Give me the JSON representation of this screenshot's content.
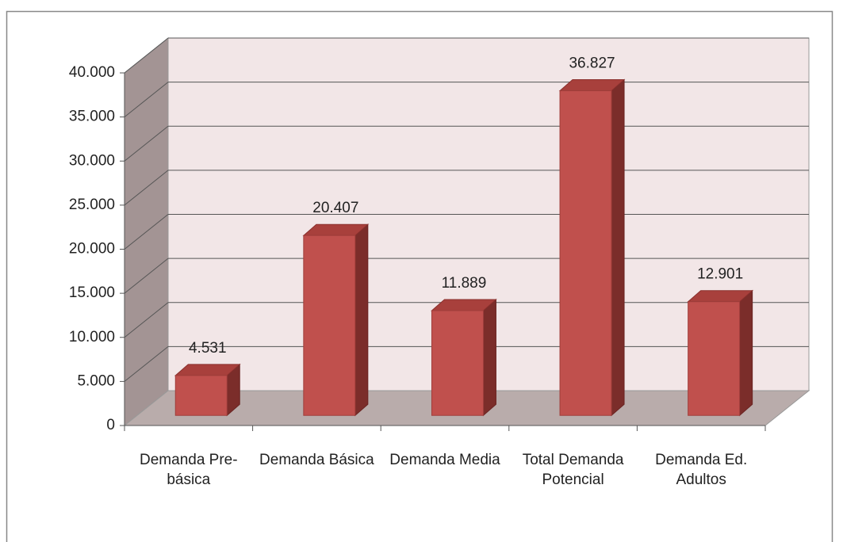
{
  "chart_data": {
    "type": "bar3d",
    "categories": [
      "Demanda Pre-básica",
      "Demanda Básica",
      "Demanda Media",
      "Total Demanda Potencial",
      "Demanda Ed. Adultos"
    ],
    "values": [
      4531,
      20407,
      11889,
      36827,
      12901
    ],
    "value_labels": [
      "4.531",
      "20.407",
      "11.889",
      "36.827",
      "12.901"
    ],
    "color": "#c0504d",
    "ylim": [
      0,
      40000
    ],
    "yticks": [
      0,
      {
        "value": 5000,
        "label": "5.000"
      },
      {
        "value": 10000,
        "label": "10.000"
      },
      {
        "value": 15000,
        "label": "15.000"
      },
      {
        "value": 20000,
        "label": "20.000"
      },
      {
        "value": 25000,
        "label": "25.000"
      },
      {
        "value": 30000,
        "label": "30.000"
      },
      {
        "value": 35000,
        "label": "35.000"
      },
      {
        "value": 40000,
        "label": "40.000"
      }
    ],
    "grid": true
  }
}
